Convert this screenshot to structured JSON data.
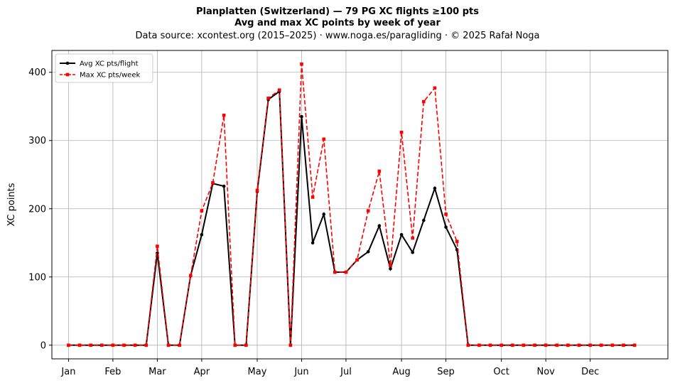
{
  "chart_data": {
    "type": "line",
    "title": "Planplatten (Switzerland)  —  79 PG XC flights ≥100 pts",
    "subtitle": "Avg and max XC points by week of year",
    "source_line": "Data source: xcontest.org (2015–2025)  ·  www.noga.es/paragliding  ·  © 2025 Rafał Noga",
    "xlabel": "",
    "ylabel": "XC points",
    "ylim": [
      -20,
      432
    ],
    "yticks": [
      0,
      100,
      200,
      300,
      400
    ],
    "xlim": [
      -1.5,
      54
    ],
    "grid": true,
    "legend_position": "top-left",
    "x_ticks": [
      {
        "week": 0,
        "label": "Jan"
      },
      {
        "week": 4,
        "label": "Feb"
      },
      {
        "week": 8,
        "label": "Mar"
      },
      {
        "week": 12,
        "label": "Apr"
      },
      {
        "week": 17,
        "label": "May"
      },
      {
        "week": 21,
        "label": "Jun"
      },
      {
        "week": 25,
        "label": "Jul"
      },
      {
        "week": 30,
        "label": "Aug"
      },
      {
        "week": 34,
        "label": "Sep"
      },
      {
        "week": 39,
        "label": "Oct"
      },
      {
        "week": 43,
        "label": "Nov"
      },
      {
        "week": 47,
        "label": "Dec"
      }
    ],
    "x": [
      0,
      1,
      2,
      3,
      4,
      5,
      6,
      7,
      8,
      9,
      10,
      11,
      12,
      13,
      14,
      15,
      16,
      17,
      18,
      19,
      20,
      21,
      22,
      23,
      24,
      25,
      26,
      27,
      28,
      29,
      30,
      31,
      32,
      33,
      34,
      35,
      36,
      37,
      38,
      39,
      40,
      41,
      42,
      43,
      44,
      45,
      46,
      47,
      48,
      49,
      50,
      51
    ],
    "series": [
      {
        "name": "Avg XC pts/flight",
        "color": "#000000",
        "style": "solid",
        "marker": "circle",
        "values": [
          0,
          0,
          0,
          0,
          0,
          0,
          0,
          0,
          135,
          0,
          0,
          102,
          162,
          237,
          233,
          0,
          0,
          225,
          360,
          372,
          0,
          335,
          150,
          192,
          107,
          107,
          125,
          137,
          175,
          112,
          162,
          136,
          183,
          230,
          173,
          140,
          0,
          0,
          0,
          0,
          0,
          0,
          0,
          0,
          0,
          0,
          0,
          0,
          0,
          0,
          0,
          0
        ]
      },
      {
        "name": "Max XC pts/week",
        "color": "#ff0000",
        "style": "dashed",
        "marker": "square",
        "values": [
          0,
          0,
          0,
          0,
          0,
          0,
          0,
          0,
          145,
          0,
          0,
          102,
          197,
          238,
          337,
          0,
          0,
          227,
          362,
          374,
          0,
          412,
          217,
          302,
          107,
          107,
          125,
          197,
          255,
          117,
          312,
          157,
          357,
          377,
          192,
          152,
          0,
          0,
          0,
          0,
          0,
          0,
          0,
          0,
          0,
          0,
          0,
          0,
          0,
          0,
          0,
          0
        ]
      }
    ]
  }
}
